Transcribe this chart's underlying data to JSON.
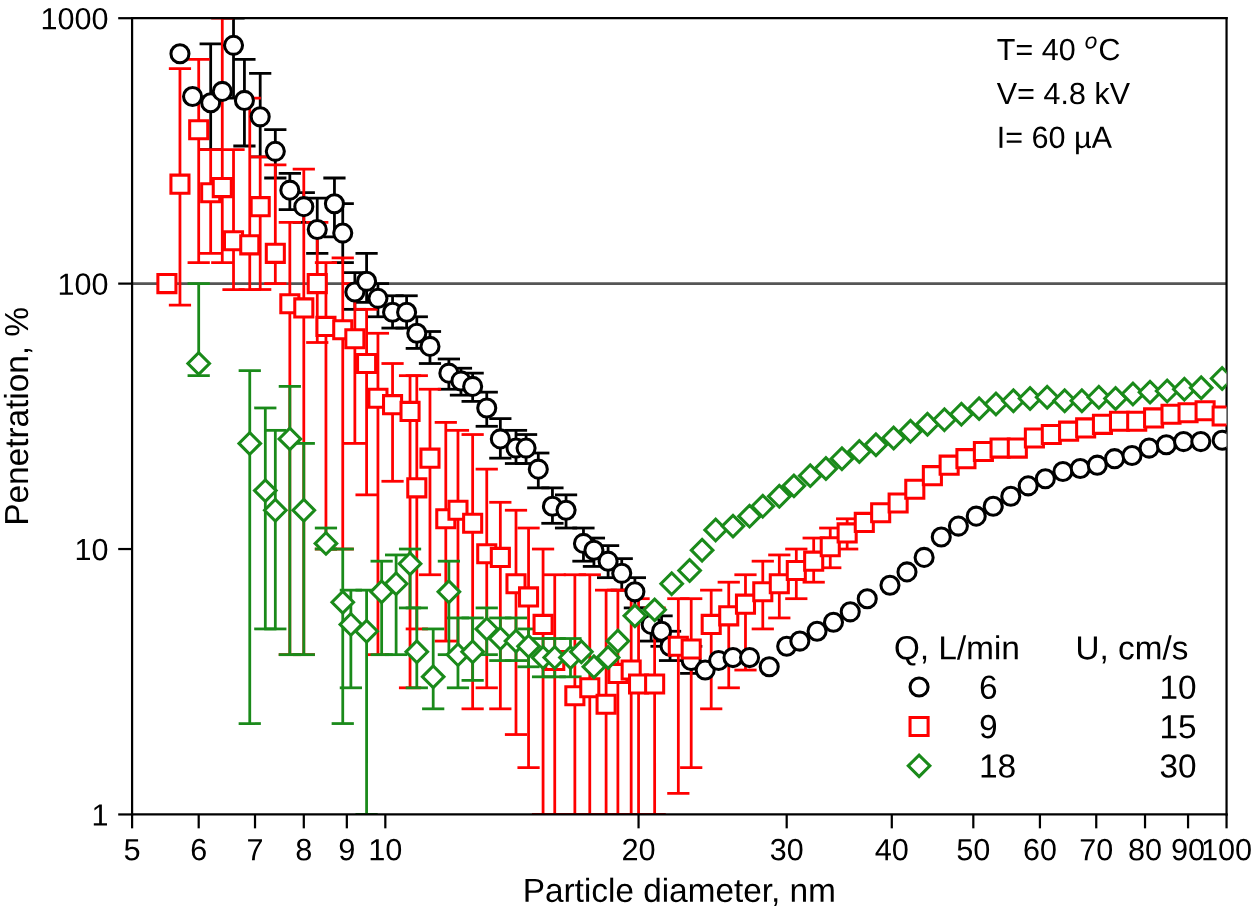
{
  "chart_data": {
    "type": "scatter",
    "xlabel": "Particle diameter, nm",
    "ylabel": "Penetration, %",
    "log": "xy",
    "grid": false,
    "legend": "bottom right",
    "legend_title": "Q, L/min      U, cm/s",
    "xlim": [
      5,
      100
    ],
    "xticks": [
      5,
      6,
      7,
      8,
      9,
      10,
      20,
      30,
      40,
      50,
      60,
      70,
      80,
      90,
      100
    ],
    "ylim": [
      1,
      1000
    ],
    "yticks": [
      1,
      10,
      100,
      1000
    ],
    "ref_lines": [
      {
        "axis": "y",
        "value": 100,
        "color": "#555555"
      }
    ],
    "annotations": [
      "T= 40 $^{o}$C",
      "V= 4.8 kV",
      "I= 60 µA",
      "10",
      "15",
      "30"
    ],
    "series": [
      {
        "name": "6",
        "color": "#000000",
        "marker": "circle",
        "x": [
          5.7,
          5.9,
          6.2,
          6.4,
          6.6,
          6.8,
          7.1,
          7.4,
          7.7,
          8.0,
          8.3,
          8.7,
          8.9,
          9.2,
          9.5,
          9.8,
          10.2,
          10.6,
          10.9,
          11.3,
          11.9,
          12.3,
          12.7,
          13.2,
          13.7,
          14.3,
          14.7,
          15.2,
          15.8,
          16.4,
          17.2,
          17.7,
          18.4,
          19.1,
          19.8,
          20.7,
          21.3,
          21.8,
          23.1,
          24.0,
          24.9,
          25.9,
          27.1,
          28.6,
          30.0,
          31.1,
          32.6,
          34.1,
          35.7,
          37.4,
          39.8,
          41.7,
          43.7,
          45.8,
          48.0,
          50.4,
          52.8,
          55.4,
          58.1,
          60.9,
          63.9,
          67.0,
          70.2,
          73.6,
          77.2,
          80.9,
          84.8,
          88.9,
          93.2,
          98.8
        ],
        "values": [
          735,
          507,
          480,
          530,
          790,
          490,
          425,
          315,
          225,
          195,
          160,
          200,
          155,
          93,
          102,
          88,
          78,
          78,
          65,
          58,
          46,
          43,
          41,
          34,
          26,
          24,
          24,
          20,
          14.5,
          14,
          10.5,
          9.9,
          9.0,
          8.1,
          6.9,
          5.2,
          4.9,
          4.3,
          3.8,
          3.5,
          3.8,
          3.9,
          3.9,
          3.6,
          4.3,
          4.5,
          4.9,
          5.3,
          5.8,
          6.5,
          7.3,
          8.2,
          9.3,
          11.1,
          12.2,
          13.3,
          14.5,
          15.8,
          17.3,
          18.4,
          19.6,
          20.1,
          20.7,
          21.9,
          22.5,
          24.0,
          24.7,
          25.4,
          25.4,
          25.7
        ],
        "errors": [
          null,
          null,
          [
            320,
            800
          ],
          null,
          [
            500,
            1000
          ],
          [
            330,
            700
          ],
          [
            300,
            620
          ],
          [
            250,
            380
          ],
          [
            190,
            260
          ],
          [
            170,
            220
          ],
          [
            130,
            210
          ],
          [
            150,
            250
          ],
          [
            120,
            200
          ],
          [
            80,
            110
          ],
          [
            85,
            130
          ],
          [
            75,
            100
          ],
          [
            68,
            90
          ],
          [
            68,
            90
          ],
          [
            57,
            75
          ],
          [
            50,
            66
          ],
          [
            40,
            52
          ],
          [
            38,
            48
          ],
          [
            36,
            46
          ],
          [
            29,
            39
          ],
          [
            22,
            31
          ],
          [
            21,
            28
          ],
          [
            21,
            27
          ],
          [
            17,
            23
          ],
          [
            12.5,
            17
          ],
          [
            12,
            16
          ],
          [
            9,
            12
          ],
          [
            8.6,
            11
          ],
          [
            7.8,
            10.3
          ],
          [
            7,
            9.2
          ],
          [
            6,
            7.8
          ],
          [
            4.5,
            6
          ],
          [
            4.3,
            5.6
          ],
          [
            3.8,
            4.9
          ],
          [
            3.4,
            4.3
          ],
          null,
          null,
          null,
          null,
          null,
          null,
          null,
          null,
          null,
          null,
          null,
          null,
          null,
          null,
          null,
          null,
          null,
          null,
          null,
          null,
          null,
          null,
          null,
          null,
          null,
          null,
          null,
          null,
          null,
          null,
          null
        ]
      },
      {
        "name": "9",
        "color": "#ff0000",
        "marker": "square",
        "x": [
          5.5,
          5.7,
          6.0,
          6.2,
          6.4,
          6.6,
          6.9,
          7.1,
          7.4,
          7.7,
          8.0,
          8.3,
          8.5,
          8.9,
          9.2,
          9.5,
          9.8,
          10.2,
          10.7,
          10.9,
          11.3,
          11.8,
          12.2,
          12.7,
          13.2,
          13.7,
          14.3,
          14.8,
          15.4,
          15.9,
          16.8,
          17.5,
          18.3,
          18.9,
          19.6,
          20.0,
          20.9,
          22.3,
          23.1,
          24.4,
          25.6,
          26.8,
          28.1,
          29.4,
          30.8,
          32.3,
          33.8,
          35.4,
          37.1,
          38.8,
          40.7,
          42.6,
          44.7,
          46.8,
          49.0,
          51.4,
          53.8,
          56.4,
          59.1,
          61.9,
          64.9,
          68.0,
          71.2,
          74.6,
          78.2,
          81.9,
          85.9,
          90.0,
          94.3,
          98.8
        ],
        "values": [
          100,
          237,
          380,
          220,
          230,
          145,
          140,
          195,
          130,
          84,
          81,
          100,
          69,
          67,
          62,
          50,
          37,
          35,
          33,
          17,
          22,
          13,
          14,
          12.5,
          9.6,
          9.3,
          7.4,
          6.6,
          5.2,
          3.8,
          2.8,
          3.0,
          2.6,
          3.4,
          3.5,
          3.1,
          3.1,
          4.3,
          4.2,
          5.2,
          5.6,
          6.2,
          6.9,
          7.4,
          8.3,
          9.0,
          10.2,
          11.5,
          12.6,
          13.7,
          14.9,
          16.8,
          18.9,
          20.7,
          21.9,
          23.3,
          24.0,
          24.0,
          26.2,
          27.0,
          27.8,
          28.6,
          29.5,
          30.3,
          30.3,
          31.2,
          32.2,
          32.6,
          33.2,
          31.7
        ],
        "errors": [
          null,
          [
            83,
            646
          ],
          [
            120,
            700
          ],
          [
            130,
            320
          ],
          [
            120,
            1000
          ],
          [
            95,
            320
          ],
          [
            95,
            500
          ],
          [
            95,
            300
          ],
          [
            100,
            280
          ],
          [
            4,
            170
          ],
          [
            4,
            270
          ],
          [
            60,
            170
          ],
          [
            10,
            120
          ],
          [
            10,
            125
          ],
          [
            25,
            100
          ],
          [
            16,
            80
          ],
          [
            4,
            65
          ],
          [
            18,
            50
          ],
          [
            3,
            45
          ],
          [
            5,
            45
          ],
          [
            8,
            40
          ],
          [
            4.5,
            30
          ],
          [
            4,
            28
          ],
          [
            2.5,
            27
          ],
          [
            3,
            20
          ],
          [
            2.5,
            15
          ],
          [
            2,
            14
          ],
          [
            1.5,
            12
          ],
          [
            1,
            10
          ],
          [
            1,
            8
          ],
          [
            1,
            8
          ],
          [
            1,
            8
          ],
          [
            1,
            7
          ],
          [
            1,
            7
          ],
          [
            1,
            7
          ],
          [
            1,
            6.5
          ],
          [
            1,
            6
          ],
          [
            1.2,
            6.5
          ],
          [
            1.5,
            6.5
          ],
          [
            2.5,
            7
          ],
          [
            3,
            7.5
          ],
          [
            3.5,
            8
          ],
          [
            5,
            9
          ],
          [
            5.5,
            9.5
          ],
          [
            6.5,
            10
          ],
          [
            7.5,
            11
          ],
          [
            8.5,
            12
          ],
          [
            10,
            13
          ],
          null,
          null,
          null,
          null,
          null,
          null,
          null,
          null,
          null,
          null,
          null,
          null,
          null,
          null,
          null,
          null,
          null,
          null,
          null,
          null,
          null,
          null
        ]
      },
      {
        "name": "18",
        "color": "#1a8a1a",
        "marker": "diamond",
        "x": [
          6.0,
          6.9,
          7.2,
          7.4,
          7.7,
          8.0,
          8.5,
          8.9,
          9.1,
          9.5,
          9.9,
          10.3,
          10.7,
          10.9,
          11.4,
          11.9,
          12.2,
          12.7,
          13.2,
          13.7,
          14.3,
          14.8,
          15.4,
          15.9,
          16.6,
          17.1,
          17.7,
          18.4,
          18.9,
          19.8,
          20.9,
          21.9,
          23.0,
          23.8,
          24.7,
          25.9,
          27.1,
          28.1,
          29.4,
          30.6,
          32.0,
          33.4,
          34.9,
          36.6,
          38.3,
          40.2,
          42.1,
          44.1,
          46.2,
          48.4,
          50.8,
          53.2,
          55.8,
          58.4,
          61.2,
          64.2,
          67.3,
          70.5,
          73.8,
          77.4,
          81.1,
          85.0,
          89.1,
          93.3,
          98.8
        ],
        "values": [
          50,
          25,
          16.6,
          14,
          26,
          14,
          10.5,
          6.3,
          5.2,
          4.9,
          6.9,
          7.4,
          8.8,
          4.1,
          3.3,
          6.9,
          4.0,
          4.1,
          5.0,
          4.6,
          4.5,
          4.3,
          3.9,
          3.9,
          3.9,
          4.1,
          3.6,
          3.9,
          4.5,
          5.6,
          5.9,
          7.4,
          8.3,
          9.9,
          11.8,
          12.2,
          13.3,
          14.5,
          15.8,
          17.3,
          18.9,
          20.1,
          21.9,
          23.3,
          24.7,
          26.2,
          27.8,
          29.5,
          30.7,
          32.2,
          33.8,
          35.2,
          36.2,
          36.9,
          37.3,
          36.2,
          36.2,
          37.3,
          36.9,
          38.4,
          39.0,
          39.4,
          40.0,
          40.5,
          43.9
        ],
        "errors": [
          [
            45,
            100
          ],
          [
            2.2,
            47
          ],
          [
            5,
            34
          ],
          [
            5,
            28
          ],
          [
            4,
            41
          ],
          [
            4,
            25
          ],
          [
            10,
            12
          ],
          [
            2.2,
            10
          ],
          [
            3,
            7
          ],
          [
            1,
            7
          ],
          [
            4,
            9
          ],
          [
            4,
            9.5
          ],
          [
            6,
            10
          ],
          [
            3,
            6
          ],
          [
            2.5,
            5
          ],
          [
            4,
            9
          ],
          [
            3,
            5.5
          ],
          [
            3.2,
            5.5
          ],
          [
            4,
            6
          ],
          [
            3.8,
            5.5
          ],
          [
            3.8,
            5.5
          ],
          [
            3.6,
            5
          ],
          [
            3.3,
            4.6
          ],
          [
            3.3,
            4.6
          ],
          [
            3.3,
            4.6
          ],
          null,
          null,
          null,
          null,
          null,
          null,
          null,
          null,
          null,
          null,
          null,
          null,
          null,
          null,
          null,
          null,
          null,
          null,
          null,
          null,
          null,
          null,
          null,
          null,
          null,
          null,
          null,
          null,
          null,
          null,
          null,
          null,
          null,
          null,
          null,
          null,
          null,
          null,
          null,
          null
        ]
      }
    ]
  }
}
